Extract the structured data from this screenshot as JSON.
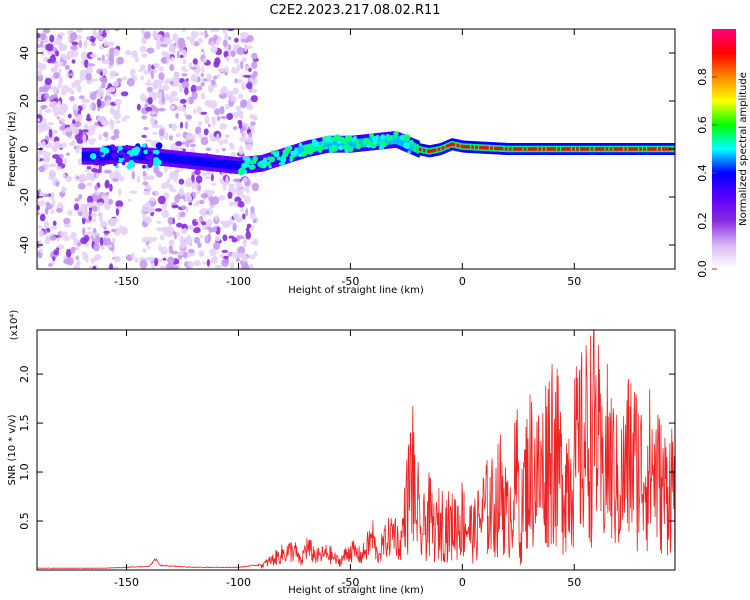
{
  "title": "C2E2.2023.217.08.02.R11",
  "chart_data": [
    {
      "type": "heatmap",
      "xlabel": "Height of straight line (km)",
      "ylabel": "Frequency (Hz)",
      "xlim": [
        -190,
        95
      ],
      "ylim": [
        -50,
        50
      ],
      "x_ticks": [
        -150,
        -100,
        -50,
        0,
        50
      ],
      "y_ticks": [
        -40,
        -20,
        0,
        20,
        40
      ],
      "colorbar": {
        "label": "Normalized spectral amplitude",
        "range": [
          0,
          1
        ],
        "ticks": [
          0.0,
          0.2,
          0.4,
          0.6,
          0.8
        ],
        "colormap": [
          "#ffffff",
          "#d9b8f5",
          "#8a2be2",
          "#5a00ff",
          "#0000ff",
          "#00ffff",
          "#00ff00",
          "#ffff00",
          "#ff8800",
          "#ff0000",
          "#ff0080"
        ]
      },
      "ridge": [
        {
          "x": -160,
          "y": -3
        },
        {
          "x": -150,
          "y": -2
        },
        {
          "x": -140,
          "y": -3
        },
        {
          "x": -100,
          "y": -7
        },
        {
          "x": -90,
          "y": -6
        },
        {
          "x": -80,
          "y": -3
        },
        {
          "x": -70,
          "y": 0
        },
        {
          "x": -60,
          "y": 2
        },
        {
          "x": -50,
          "y": 2
        },
        {
          "x": -40,
          "y": 3
        },
        {
          "x": -30,
          "y": 4
        },
        {
          "x": -25,
          "y": 2
        },
        {
          "x": -20,
          "y": 0
        },
        {
          "x": -15,
          "y": -1
        },
        {
          "x": -10,
          "y": 0
        },
        {
          "x": -5,
          "y": 2
        },
        {
          "x": 0,
          "y": 1
        },
        {
          "x": 20,
          "y": 0
        },
        {
          "x": 50,
          "y": 0
        },
        {
          "x": 95,
          "y": 0
        }
      ]
    },
    {
      "type": "line",
      "xlabel": "Height of straight line (km)",
      "ylabel": "SNR (10 * v/v)",
      "y_multiplier": "(x10⁴)",
      "xlim": [
        -190,
        95
      ],
      "ylim": [
        0,
        2.45
      ],
      "x_ticks": [
        -150,
        -100,
        -50,
        0,
        50
      ],
      "y_ticks": [
        0.5,
        1.0,
        1.5,
        2.0
      ],
      "color": "#ee2222",
      "series": [
        {
          "x": [
            -190,
            -160,
            -140,
            -137,
            -135,
            -120,
            -100,
            -90,
            -85,
            -80,
            -75,
            -72,
            -70,
            -65,
            -60,
            -55,
            -50,
            -45,
            -40,
            -38,
            -35,
            -30,
            -28,
            -25,
            -22,
            -21,
            -20,
            -19,
            -15,
            -12,
            -10,
            -5,
            0,
            5,
            10,
            15,
            18,
            20,
            25,
            26,
            27,
            30,
            35,
            40,
            45,
            50,
            55,
            60,
            62,
            65,
            70,
            75,
            80,
            85,
            90,
            95
          ],
          "y": [
            0.02,
            0.02,
            0.04,
            0.12,
            0.05,
            0.03,
            0.03,
            0.06,
            0.15,
            0.25,
            0.3,
            0.1,
            0.35,
            0.2,
            0.25,
            0.12,
            0.3,
            0.2,
            0.5,
            0.2,
            0.4,
            0.6,
            0.3,
            1.0,
            1.75,
            0.8,
            1.2,
            0.5,
            0.9,
            0.6,
            0.8,
            0.7,
            0.85,
            0.6,
            1.0,
            1.05,
            1.4,
            0.8,
            1.6,
            0.3,
            1.2,
            1.7,
            1.5,
            2.2,
            1.4,
            1.8,
            2.1,
            2.4,
            1.5,
            1.9,
            1.3,
            1.9,
            1.6,
            1.7,
            1.3,
            1.5
          ]
        }
      ]
    }
  ]
}
